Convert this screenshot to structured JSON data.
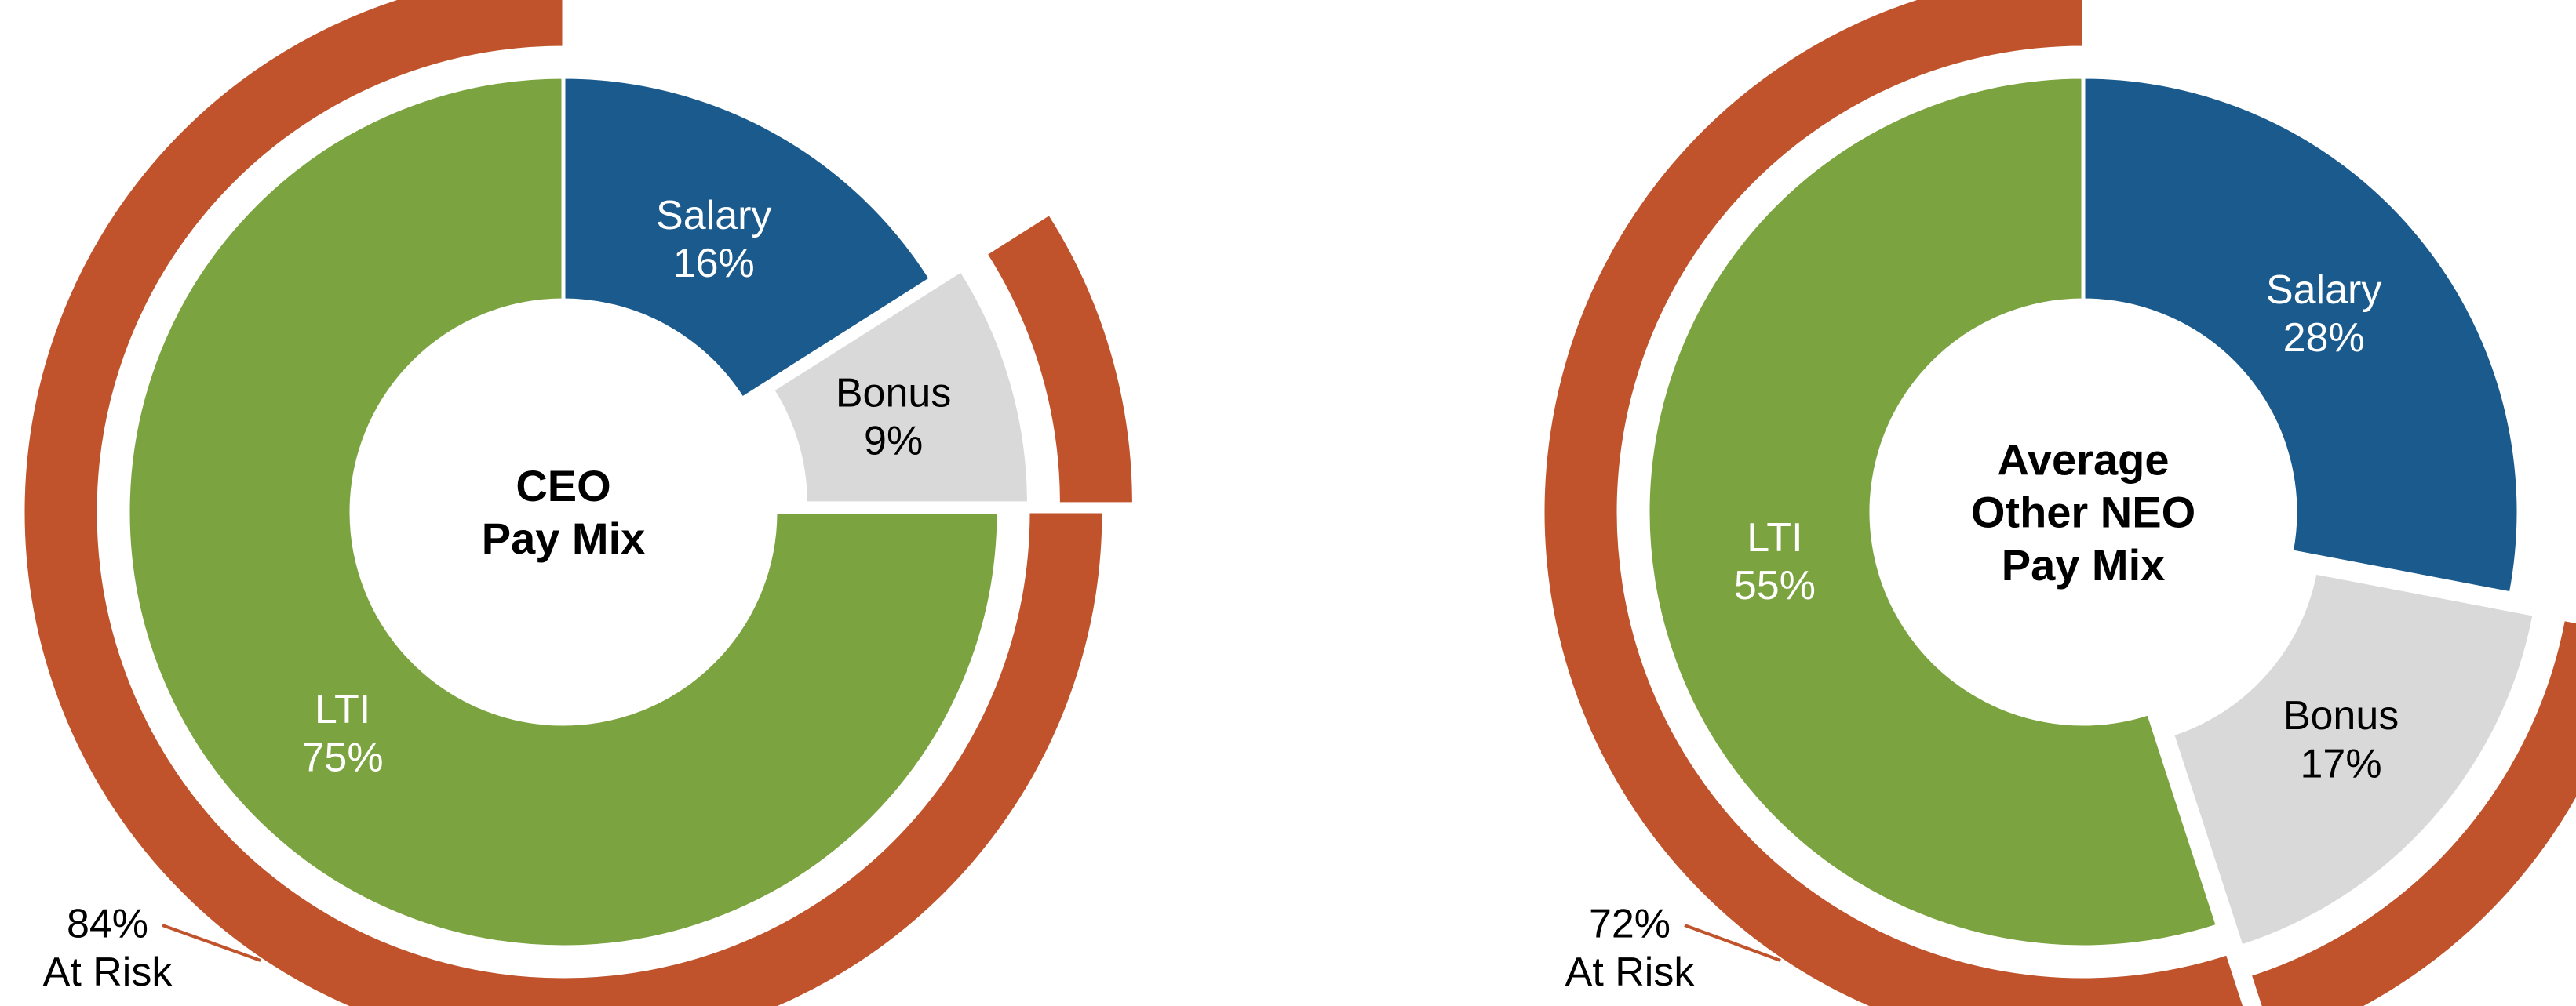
{
  "page": {
    "background": "#ffffff"
  },
  "colors": {
    "salary_blue": "#1a5a8c",
    "bonus_gray": "#d9d9d9",
    "lti_green": "#7ba33f",
    "at_risk_rust": "#c0532b",
    "slice_border": "#ffffff",
    "label_dark": "#000000",
    "label_light": "#ffffff"
  },
  "chart_data": [
    {
      "type": "pie",
      "variant": "donut-exploded-with-outer-ring",
      "title": "CEO Pay Mix",
      "title_lines": [
        "CEO",
        "Pay Mix"
      ],
      "categories": [
        "Salary",
        "Bonus",
        "LTI"
      ],
      "values": [
        16,
        9,
        75
      ],
      "unit": "%",
      "slice_labels": [
        [
          "Salary",
          "16%"
        ],
        [
          "Bonus",
          "9%"
        ],
        [
          "LTI",
          "75%"
        ]
      ],
      "slice_colors": [
        "#1a5a8c",
        "#d9d9d9",
        "#7ba33f"
      ],
      "slice_label_colors": [
        "#ffffff",
        "#000000",
        "#ffffff"
      ],
      "exploded_slice": "Bonus",
      "start_angle": 0,
      "direction": "clockwise",
      "outer_ring": {
        "value": 84,
        "label_lines": [
          "84%",
          "At Risk"
        ],
        "covers": [
          "Bonus",
          "LTI"
        ],
        "color": "#c0532b"
      }
    },
    {
      "type": "pie",
      "variant": "donut-exploded-with-outer-ring",
      "title": "Average Other NEO Pay Mix",
      "title_lines": [
        "Average",
        "Other NEO",
        "Pay Mix"
      ],
      "categories": [
        "Salary",
        "Bonus",
        "LTI"
      ],
      "values": [
        28,
        17,
        55
      ],
      "unit": "%",
      "slice_labels": [
        [
          "Salary",
          "28%"
        ],
        [
          "Bonus",
          "17%"
        ],
        [
          "LTI",
          "55%"
        ]
      ],
      "slice_colors": [
        "#1a5a8c",
        "#d9d9d9",
        "#7ba33f"
      ],
      "slice_label_colors": [
        "#ffffff",
        "#000000",
        "#ffffff"
      ],
      "exploded_slice": "Bonus",
      "start_angle": 0,
      "direction": "clockwise",
      "outer_ring": {
        "value": 72,
        "label_lines": [
          "72%",
          "At Risk"
        ],
        "covers": [
          "Bonus",
          "LTI"
        ],
        "color": "#c0532b"
      }
    }
  ]
}
